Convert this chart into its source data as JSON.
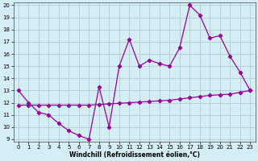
{
  "xlabel": "Windchill (Refroidissement éolien,°C)",
  "x": [
    0,
    1,
    2,
    3,
    4,
    5,
    6,
    7,
    8,
    9,
    10,
    11,
    12,
    13,
    14,
    15,
    16,
    17,
    18,
    19,
    20,
    21,
    22,
    23
  ],
  "line1_y": [
    13.0,
    12.0,
    11.2,
    11.0,
    10.3,
    9.7,
    9.3,
    9.0,
    13.3,
    10.0,
    15.0,
    17.2,
    15.0,
    15.5,
    15.2,
    15.0,
    16.5,
    20.0,
    19.2,
    17.3,
    17.5,
    15.8,
    14.5,
    13.0
  ],
  "line2_y": [
    11.8,
    11.8,
    11.8,
    11.8,
    11.8,
    11.8,
    11.8,
    11.8,
    11.85,
    11.9,
    11.95,
    12.0,
    12.05,
    12.1,
    12.15,
    12.2,
    12.3,
    12.4,
    12.5,
    12.6,
    12.65,
    12.7,
    12.85,
    13.0
  ],
  "line_color": "#990099",
  "bg_color": "#d4eef4",
  "grid_color": "#b0ccd4",
  "ylim_min": 9,
  "ylim_max": 20,
  "xlim_min": -0.5,
  "xlim_max": 23.5,
  "yticks": [
    9,
    10,
    11,
    12,
    13,
    14,
    15,
    16,
    17,
    18,
    19,
    20
  ],
  "xticks": [
    0,
    1,
    2,
    3,
    4,
    5,
    6,
    7,
    8,
    9,
    10,
    11,
    12,
    13,
    14,
    15,
    16,
    17,
    18,
    19,
    20,
    21,
    22,
    23
  ],
  "tick_fontsize": 5,
  "xlabel_fontsize": 5.5,
  "marker_size": 2.2,
  "line_width": 0.9
}
